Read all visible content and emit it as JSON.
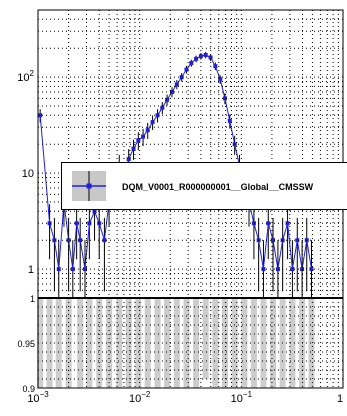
{
  "chart_data": [
    {
      "type": "scatter",
      "panel": "top",
      "title": "",
      "xlabel": "",
      "ylabel": "",
      "xscale": "log",
      "yscale": "log",
      "xlim": [
        0.001,
        1
      ],
      "ylim": [
        0.5,
        500
      ],
      "yticks": [
        "1",
        "10",
        "10^2"
      ],
      "grid": true,
      "legend": {
        "position": "middle-right",
        "entries": [
          "DQM_V0001_R000000001__Global__CMSSW"
        ]
      },
      "series": [
        {
          "name": "DQM_V0001_R000000001__Global__CMSSW",
          "color": "#1f1fe0",
          "band_color": "#c8c8c8",
          "x": [
            0.00105,
            0.0013,
            0.00145,
            0.0016,
            0.0018,
            0.002,
            0.0022,
            0.0024,
            0.0026,
            0.0029,
            0.0032,
            0.0036,
            0.004,
            0.0045,
            0.005,
            0.0056,
            0.0063,
            0.007,
            0.0078,
            0.0087,
            0.0097,
            0.0108,
            0.012,
            0.0134,
            0.015,
            0.0167,
            0.0186,
            0.0208,
            0.0232,
            0.0259,
            0.0289,
            0.0322,
            0.0359,
            0.04,
            0.0446,
            0.0498,
            0.0555,
            0.062,
            0.069,
            0.077,
            0.086,
            0.096,
            0.107,
            0.119,
            0.133,
            0.148,
            0.165,
            0.184,
            0.205,
            0.229,
            0.255,
            0.285,
            0.318,
            0.355,
            0.396,
            0.44,
            0.49
          ],
          "y": [
            40,
            3,
            2,
            1,
            5,
            2,
            1,
            3,
            2,
            1,
            3,
            4,
            3,
            2,
            5,
            8,
            12,
            9,
            14,
            18,
            22,
            24,
            28,
            34,
            40,
            48,
            58,
            70,
            84,
            100,
            120,
            140,
            155,
            165,
            170,
            160,
            130,
            95,
            60,
            35,
            20,
            12,
            8,
            5,
            3,
            2,
            1,
            3,
            2,
            1,
            2,
            3,
            1,
            2,
            1,
            2,
            1
          ]
        }
      ]
    },
    {
      "type": "area",
      "panel": "bottom",
      "title": "",
      "xlabel": "",
      "ylabel": "",
      "xscale": "log",
      "xlim": [
        0.001,
        1
      ],
      "ylim": [
        0.9,
        1.0
      ],
      "xticks": [
        "10^-3",
        "10^-2",
        "10^-1",
        "1"
      ],
      "yticks": [
        "0.9",
        "0.95",
        "1"
      ],
      "grid": true,
      "series": [
        {
          "name": "",
          "color": "#c8c8c8",
          "x": [
            0.00105,
            0.0013,
            0.0016,
            0.002,
            0.0026,
            0.0032,
            0.004,
            0.005,
            0.0063,
            0.0078,
            0.0097,
            0.012,
            0.015,
            0.0186,
            0.0232,
            0.0289,
            0.0359,
            0.0446,
            0.0555,
            0.069,
            0.086,
            0.107,
            0.133,
            0.165,
            0.205,
            0.255,
            0.318,
            0.396,
            0.49
          ],
          "y": [
            0.9,
            0.9,
            0.9,
            0.9,
            0.9,
            0.9,
            0.9,
            0.9,
            0.9,
            0.9,
            0.9,
            0.9,
            0.9,
            0.9,
            0.9,
            0.9,
            0.9,
            0.91,
            0.9,
            0.9,
            0.9,
            0.9,
            0.9,
            0.9,
            0.9,
            0.9,
            0.9,
            0.9,
            0.9
          ]
        }
      ]
    }
  ]
}
